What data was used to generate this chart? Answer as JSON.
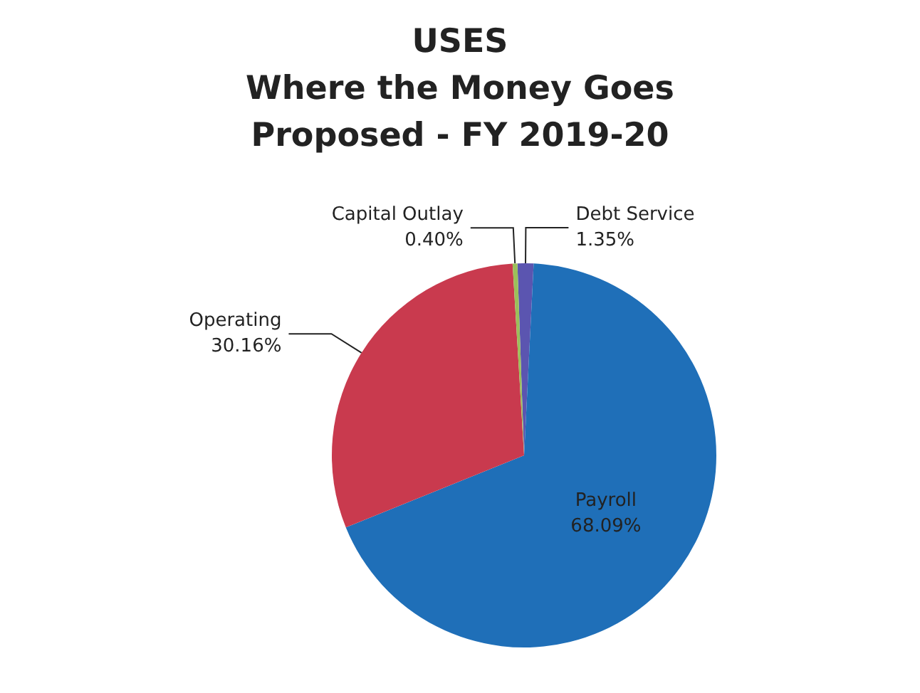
{
  "chart_data": {
    "type": "pie",
    "title": "USES\nWhere the Money Goes\nProposed - FY 2019-20",
    "categories": [
      "Debt Service",
      "Payroll",
      "Operating",
      "Capital Outlay"
    ],
    "values": [
      1.35,
      68.09,
      30.16,
      0.4
    ],
    "colors": [
      "#5b55b0",
      "#1f6fb8",
      "#c93a4e",
      "#9bbf5a"
    ],
    "value_labels": [
      "1.35%",
      "68.09%",
      "30.16%",
      "0.40%"
    ],
    "legend": false
  }
}
